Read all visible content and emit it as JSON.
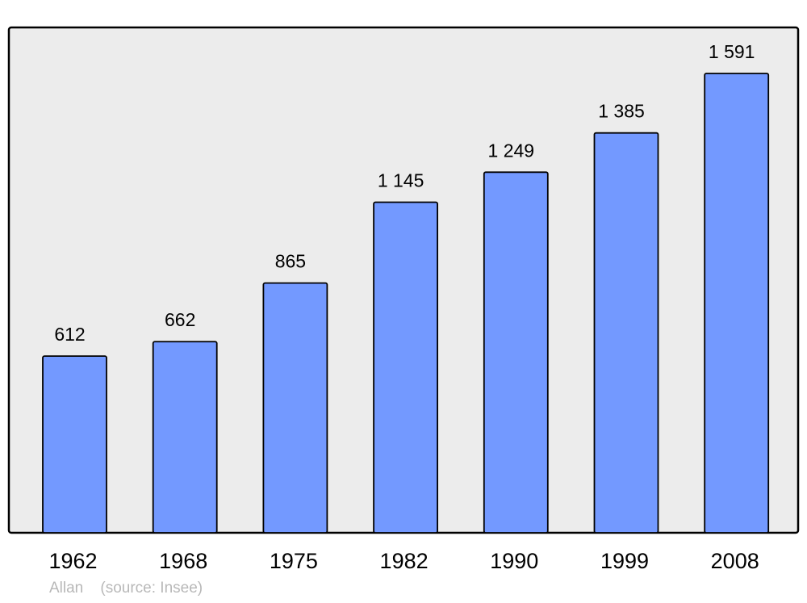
{
  "chart_data": {
    "type": "bar",
    "categories": [
      "1962",
      "1968",
      "1975",
      "1982",
      "1990",
      "1999",
      "2008"
    ],
    "values": [
      612,
      662,
      865,
      1145,
      1249,
      1385,
      1591
    ],
    "value_labels": [
      "612",
      "662",
      "865",
      "1 145",
      "1 249",
      "1 385",
      "1 591"
    ],
    "title": "",
    "xlabel": "",
    "ylabel": "",
    "ylim": [
      0,
      1750
    ],
    "grid": false,
    "colors": {
      "bar": "#7399ff",
      "plot_background": "#ececec",
      "border": "#000000"
    }
  },
  "footer": {
    "author": "Allan",
    "source": "(source: Insee)"
  }
}
